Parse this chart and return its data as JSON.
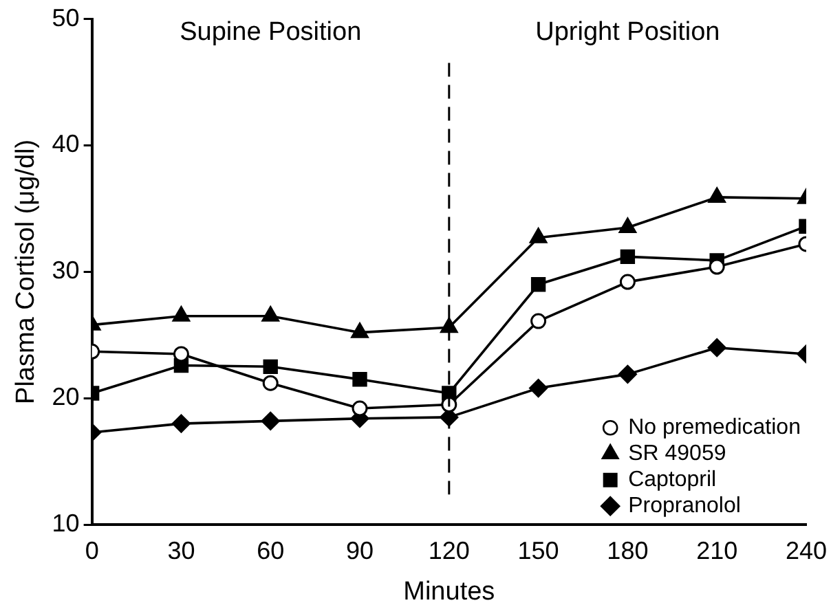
{
  "chart_data": {
    "type": "line",
    "xlabel": "Minutes",
    "ylabel": "Plasma Cortisol (μg/dl)",
    "x": [
      0,
      30,
      60,
      90,
      120,
      150,
      180,
      210,
      240
    ],
    "xlim": [
      0,
      240
    ],
    "xticks": [
      0,
      30,
      60,
      90,
      120,
      150,
      180,
      210,
      240
    ],
    "ylim": [
      10,
      50
    ],
    "yticks": [
      10,
      20,
      30,
      40,
      50
    ],
    "grid": false,
    "legend": "bottom right",
    "line_style": "solid",
    "annotations": [
      "Supine Position",
      "Upright Position"
    ],
    "ref_lines": [
      {
        "axis": "x",
        "value": 120,
        "line_style": "dashed",
        "color": "#000000"
      }
    ],
    "series": [
      {
        "name": "No premedication",
        "color": "#000000",
        "marker": "circle",
        "values": [
          23.7,
          23.5,
          21.2,
          19.2,
          19.5,
          26.1,
          29.2,
          30.4,
          32.2
        ]
      },
      {
        "name": "SR 49059",
        "color": "#000000",
        "marker": "triangle",
        "values": [
          25.8,
          26.5,
          26.5,
          25.2,
          25.6,
          32.7,
          33.5,
          35.9,
          35.8
        ]
      },
      {
        "name": "Captopril",
        "color": "#000000",
        "marker": "square",
        "values": [
          20.4,
          22.6,
          22.5,
          21.5,
          20.4,
          29.0,
          31.2,
          30.9,
          33.6
        ]
      },
      {
        "name": "Propranolol",
        "color": "#000000",
        "marker": "diamond",
        "values": [
          17.3,
          18.0,
          18.2,
          18.4,
          18.5,
          20.8,
          21.9,
          24.0,
          23.5
        ]
      }
    ]
  }
}
